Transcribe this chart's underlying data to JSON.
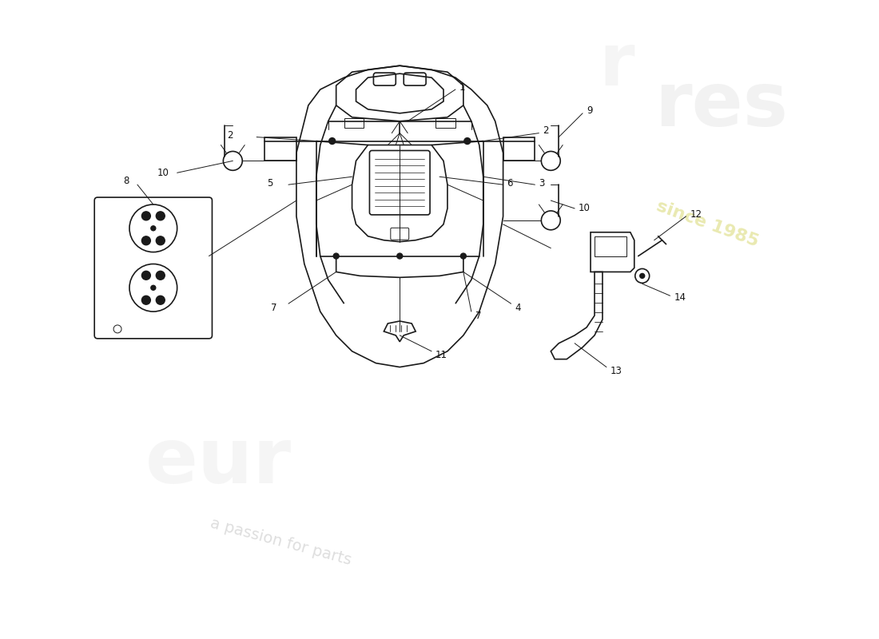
{
  "bg_color": "#ffffff",
  "line_color": "#1a1a1a",
  "label_color": "#111111",
  "fig_width": 11.0,
  "fig_height": 8.0,
  "dpi": 100,
  "xlim": [
    0,
    110
  ],
  "ylim": [
    0,
    80
  ],
  "label_fontsize": 8.5
}
